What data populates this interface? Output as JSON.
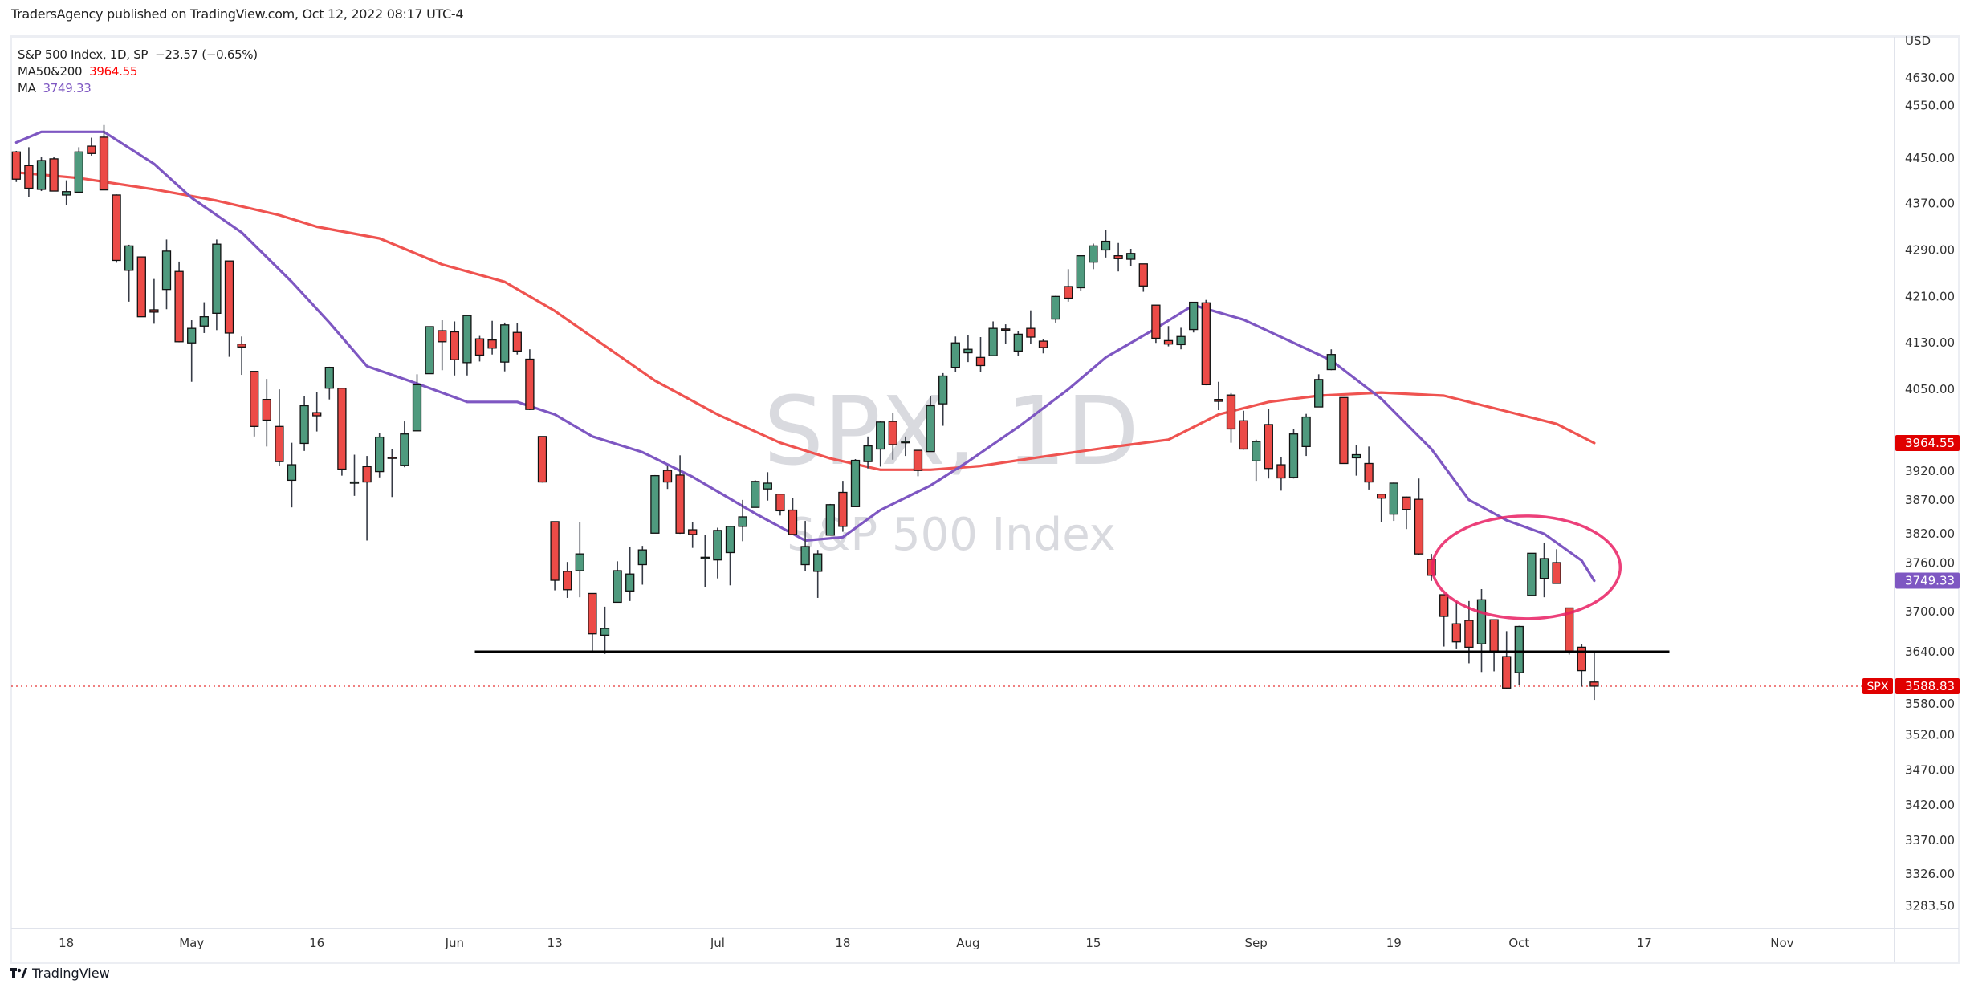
{
  "header": {
    "publisher_line": "TradersAgency published on TradingView.com, Oct 12, 2022 08:17 UTC-4"
  },
  "legend": {
    "symbol_line": "S&P 500 Index, 1D, SP",
    "change": "−23.57 (−0.65%)",
    "ma1_label": "MA50&200",
    "ma1_value": "3964.55",
    "ma2_label": "MA",
    "ma2_value": "3749.33"
  },
  "watermark": {
    "symbol": "SPX, 1D",
    "name": "S&P 500 Index"
  },
  "footer": {
    "brand": "TradingView"
  },
  "colors": {
    "up": "#4f9a7e",
    "down": "#ec4b47",
    "ma50_200": "#ef5350",
    "ma": "#7e57c2",
    "ellipse": "#e91e63",
    "support": "#000000",
    "last_price": "#e00000"
  },
  "chart_data": {
    "type": "candlestick",
    "symbol": "SPX",
    "currency": "USD",
    "y_ticks": [
      "4630.00",
      "4550.00",
      "4450.00",
      "4370.00",
      "4290.00",
      "4210.00",
      "4130.00",
      "4050.00",
      "3920.00",
      "3870.00",
      "3820.00",
      "3760.00",
      "3700.00",
      "3640.00",
      "3580.00",
      "3520.00",
      "3470.00",
      "3420.00",
      "3370.00",
      "3326.00",
      "3283.50"
    ],
    "x_ticks": [
      {
        "label": "18",
        "date": "2022-04-18"
      },
      {
        "label": "May",
        "date": "2022-05-02"
      },
      {
        "label": "16",
        "date": "2022-05-16"
      },
      {
        "label": "Jun",
        "date": "2022-06-01"
      },
      {
        "label": "13",
        "date": "2022-06-13"
      },
      {
        "label": "Jul",
        "date": "2022-07-01"
      },
      {
        "label": "18",
        "date": "2022-07-18"
      },
      {
        "label": "Aug",
        "date": "2022-08-01"
      },
      {
        "label": "15",
        "date": "2022-08-15"
      },
      {
        "label": "Sep",
        "date": "2022-09-01"
      },
      {
        "label": "19",
        "date": "2022-09-19"
      },
      {
        "label": "Oct",
        "date": "2022-10-03"
      },
      {
        "label": "17",
        "date": "2022-10-17"
      },
      {
        "label": "Nov",
        "date": "2022-11-01"
      }
    ],
    "price_badges": [
      {
        "label": "3964.55",
        "series": "MA50&200"
      },
      {
        "label": "3749.33",
        "series": "MA"
      },
      {
        "label": "3588.83",
        "series": "SPX",
        "tag": "SPX"
      }
    ],
    "support_line": {
      "value": 3640,
      "from": "2022-06-03",
      "to": "2022-10-19"
    },
    "highlight_ellipse": {
      "center_date": "2022-10-03",
      "center_value": 3770
    },
    "candles_columns": [
      "date",
      "open",
      "high",
      "low",
      "close"
    ],
    "candles": [
      [
        "2022-04-11",
        4462,
        4464,
        4408,
        4413
      ],
      [
        "2022-04-12",
        4437,
        4471,
        4381,
        4397
      ],
      [
        "2022-04-13",
        4395,
        4453,
        4392,
        4446
      ],
      [
        "2022-04-14",
        4449,
        4453,
        4392,
        4392
      ],
      [
        "2022-04-18",
        4385,
        4411,
        4367,
        4391
      ],
      [
        "2022-04-19",
        4390,
        4471,
        4390,
        4462
      ],
      [
        "2022-04-20",
        4473,
        4489,
        4455,
        4459
      ],
      [
        "2022-04-21",
        4490,
        4513,
        4394,
        4394
      ],
      [
        "2022-04-22",
        4385,
        4386,
        4268,
        4272
      ],
      [
        "2022-04-25",
        4255,
        4299,
        4201,
        4297
      ],
      [
        "2022-04-26",
        4278,
        4278,
        4175,
        4175
      ],
      [
        "2022-04-27",
        4187,
        4240,
        4163,
        4183
      ],
      [
        "2022-04-28",
        4222,
        4308,
        4188,
        4288
      ],
      [
        "2022-04-29",
        4253,
        4270,
        4131,
        4132
      ],
      [
        "2022-05-02",
        4130,
        4169,
        4063,
        4155
      ],
      [
        "2022-05-03",
        4159,
        4200,
        4147,
        4175
      ],
      [
        "2022-05-04",
        4181,
        4308,
        4152,
        4300
      ],
      [
        "2022-05-05",
        4271,
        4271,
        4106,
        4147
      ],
      [
        "2022-05-06",
        4128,
        4141,
        4075,
        4123
      ],
      [
        "2022-05-09",
        4081,
        4081,
        3975,
        3991
      ],
      [
        "2022-05-10",
        4034,
        4068,
        3959,
        4001
      ],
      [
        "2022-05-11",
        3991,
        4050,
        3928,
        3935
      ],
      [
        "2022-05-12",
        3904,
        3965,
        3859,
        3930
      ],
      [
        "2022-05-13",
        3964,
        4039,
        3952,
        4024
      ],
      [
        "2022-05-16",
        4013,
        4046,
        3983,
        4008
      ],
      [
        "2022-05-17",
        4052,
        4089,
        4034,
        4088
      ],
      [
        "2022-05-18",
        4052,
        4052,
        3912,
        3923
      ],
      [
        "2022-05-19",
        3900,
        3946,
        3877,
        3901
      ],
      [
        "2022-05-20",
        3927,
        3944,
        3810,
        3901
      ],
      [
        "2022-05-23",
        3919,
        3981,
        3909,
        3974
      ],
      [
        "2022-05-24",
        3942,
        3955,
        3875,
        3941
      ],
      [
        "2022-05-25",
        3929,
        3999,
        3926,
        3979
      ],
      [
        "2022-05-26",
        3984,
        4076,
        3984,
        4058
      ],
      [
        "2022-05-27",
        4077,
        4158,
        4077,
        4158
      ],
      [
        "2022-05-31",
        4151,
        4169,
        4083,
        4132
      ],
      [
        "2022-06-01",
        4149,
        4167,
        4074,
        4101
      ],
      [
        "2022-06-02",
        4096,
        4177,
        4074,
        4177
      ],
      [
        "2022-06-03",
        4137,
        4142,
        4098,
        4109
      ],
      [
        "2022-06-06",
        4135,
        4168,
        4110,
        4121
      ],
      [
        "2022-06-07",
        4097,
        4165,
        4081,
        4161
      ],
      [
        "2022-06-08",
        4148,
        4164,
        4110,
        4116
      ],
      [
        "2022-06-09",
        4102,
        4119,
        4017,
        4018
      ],
      [
        "2022-06-10",
        3975,
        3975,
        3900,
        3901
      ],
      [
        "2022-06-13",
        3838,
        3838,
        3734,
        3750
      ],
      [
        "2022-06-14",
        3764,
        3778,
        3722,
        3735
      ],
      [
        "2022-06-15",
        3765,
        3837,
        3723,
        3790
      ],
      [
        "2022-06-16",
        3729,
        3729,
        3639,
        3667
      ],
      [
        "2022-06-17",
        3665,
        3708,
        3637,
        3675
      ],
      [
        "2022-06-21",
        3715,
        3779,
        3715,
        3765
      ],
      [
        "2022-06-22",
        3733,
        3801,
        3717,
        3760
      ],
      [
        "2022-06-23",
        3774,
        3802,
        3743,
        3796
      ],
      [
        "2022-06-24",
        3821,
        3913,
        3821,
        3912
      ],
      [
        "2022-06-27",
        3921,
        3928,
        3889,
        3901
      ],
      [
        "2022-06-28",
        3913,
        3945,
        3820,
        3821
      ],
      [
        "2022-06-29",
        3826,
        3837,
        3799,
        3819
      ],
      [
        "2022-06-30",
        3785,
        3818,
        3739,
        3785
      ],
      [
        "2022-07-01",
        3781,
        3829,
        3753,
        3825
      ],
      [
        "2022-07-05",
        3792,
        3832,
        3742,
        3831
      ],
      [
        "2022-07-06",
        3831,
        3870,
        3809,
        3845
      ],
      [
        "2022-07-07",
        3859,
        3904,
        3859,
        3902
      ],
      [
        "2022-07-08",
        3889,
        3918,
        3869,
        3899
      ],
      [
        "2022-07-11",
        3880,
        3880,
        3847,
        3854
      ],
      [
        "2022-07-12",
        3855,
        3873,
        3818,
        3819
      ],
      [
        "2022-07-13",
        3774,
        3839,
        3765,
        3801
      ],
      [
        "2022-07-14",
        3764,
        3796,
        3722,
        3790
      ],
      [
        "2022-07-15",
        3818,
        3864,
        3818,
        3863
      ],
      [
        "2022-07-18",
        3883,
        3903,
        3823,
        3831
      ],
      [
        "2022-07-19",
        3860,
        3939,
        3860,
        3937
      ],
      [
        "2022-07-20",
        3935,
        3975,
        3924,
        3960
      ],
      [
        "2022-07-21",
        3955,
        3999,
        3927,
        3998
      ],
      [
        "2022-07-22",
        3999,
        4012,
        3938,
        3962
      ],
      [
        "2022-07-25",
        3965,
        3975,
        3944,
        3967
      ],
      [
        "2022-07-26",
        3953,
        3953,
        3911,
        3921
      ],
      [
        "2022-07-27",
        3951,
        4039,
        3951,
        4024
      ],
      [
        "2022-07-28",
        4027,
        4078,
        3992,
        4073
      ],
      [
        "2022-07-29",
        4088,
        4141,
        4080,
        4130
      ],
      [
        "2022-08-01",
        4113,
        4144,
        4097,
        4119
      ],
      [
        "2022-08-02",
        4105,
        4140,
        4080,
        4091
      ],
      [
        "2022-08-03",
        4108,
        4167,
        4107,
        4155
      ],
      [
        "2022-08-04",
        4154,
        4162,
        4128,
        4152
      ],
      [
        "2022-08-05",
        4116,
        4151,
        4107,
        4145
      ],
      [
        "2022-08-08",
        4155,
        4186,
        4128,
        4140
      ],
      [
        "2022-08-09",
        4133,
        4137,
        4112,
        4122
      ],
      [
        "2022-08-10",
        4171,
        4211,
        4165,
        4210
      ],
      [
        "2022-08-11",
        4227,
        4257,
        4201,
        4207
      ],
      [
        "2022-08-12",
        4225,
        4280,
        4219,
        4280
      ],
      [
        "2022-08-15",
        4269,
        4301,
        4257,
        4297
      ],
      [
        "2022-08-16",
        4290,
        4325,
        4277,
        4305
      ],
      [
        "2022-08-17",
        4280,
        4302,
        4253,
        4275
      ],
      [
        "2022-08-18",
        4274,
        4292,
        4262,
        4284
      ],
      [
        "2022-08-19",
        4266,
        4266,
        4218,
        4228
      ],
      [
        "2022-08-22",
        4195,
        4195,
        4130,
        4138
      ],
      [
        "2022-08-23",
        4134,
        4159,
        4124,
        4128
      ],
      [
        "2022-08-24",
        4127,
        4156,
        4119,
        4141
      ],
      [
        "2022-08-25",
        4153,
        4200,
        4148,
        4200
      ],
      [
        "2022-08-26",
        4199,
        4204,
        4057,
        4058
      ],
      [
        "2022-08-29",
        4034,
        4063,
        4017,
        4031
      ],
      [
        "2022-08-30",
        4041,
        4044,
        3965,
        3987
      ],
      [
        "2022-08-31",
        4000,
        4016,
        3954,
        3955
      ],
      [
        "2022-09-01",
        3936,
        3970,
        3903,
        3967
      ],
      [
        "2022-09-02",
        3994,
        4019,
        3907,
        3924
      ],
      [
        "2022-09-06",
        3930,
        3942,
        3886,
        3908
      ],
      [
        "2022-09-07",
        3909,
        3987,
        3907,
        3979
      ],
      [
        "2022-09-08",
        3959,
        4011,
        3944,
        4006
      ],
      [
        "2022-09-09",
        4022,
        4076,
        4022,
        4067
      ],
      [
        "2022-09-12",
        4084,
        4119,
        4083,
        4110
      ],
      [
        "2022-09-13",
        4037,
        4037,
        3933,
        3932
      ],
      [
        "2022-09-14",
        3941,
        3961,
        3912,
        3946
      ],
      [
        "2022-09-15",
        3932,
        3959,
        3888,
        3901
      ],
      [
        "2022-09-16",
        3880,
        3880,
        3837,
        3873
      ],
      [
        "2022-09-19",
        3849,
        3900,
        3839,
        3899
      ],
      [
        "2022-09-20",
        3875,
        3876,
        3827,
        3856
      ],
      [
        "2022-09-21",
        3871,
        3907,
        3789,
        3790
      ],
      [
        "2022-09-22",
        3782,
        3790,
        3749,
        3758
      ],
      [
        "2022-09-23",
        3727,
        3727,
        3648,
        3693
      ],
      [
        "2022-09-26",
        3682,
        3716,
        3644,
        3655
      ],
      [
        "2022-09-27",
        3687,
        3717,
        3623,
        3647
      ],
      [
        "2022-09-28",
        3652,
        3736,
        3610,
        3719
      ],
      [
        "2022-09-29",
        3688,
        3688,
        3611,
        3640
      ],
      [
        "2022-09-30",
        3633,
        3671,
        3584,
        3586
      ],
      [
        "2022-10-03",
        3609,
        3679,
        3591,
        3678
      ],
      [
        "2022-10-04",
        3726,
        3791,
        3726,
        3791
      ],
      [
        "2022-10-05",
        3753,
        3807,
        3723,
        3783
      ],
      [
        "2022-10-06",
        3777,
        3797,
        3745,
        3745
      ],
      [
        "2022-10-07",
        3706,
        3706,
        3636,
        3640
      ],
      [
        "2022-10-10",
        3647,
        3652,
        3588,
        3612
      ],
      [
        "2022-10-11",
        3595,
        3641,
        3569,
        3588.83
      ]
    ],
    "series": [
      {
        "name": "MA50&200",
        "points": [
          [
            "2022-04-11",
            4425
          ],
          [
            "2022-04-19",
            4415
          ],
          [
            "2022-04-27",
            4395
          ],
          [
            "2022-05-04",
            4375
          ],
          [
            "2022-05-11",
            4350
          ],
          [
            "2022-05-16",
            4330
          ],
          [
            "2022-05-23",
            4310
          ],
          [
            "2022-05-31",
            4265
          ],
          [
            "2022-06-07",
            4235
          ],
          [
            "2022-06-13",
            4185
          ],
          [
            "2022-06-17",
            4125
          ],
          [
            "2022-06-24",
            4065
          ],
          [
            "2022-07-01",
            4010
          ],
          [
            "2022-07-11",
            3965
          ],
          [
            "2022-07-15",
            3940
          ],
          [
            "2022-07-21",
            3922
          ],
          [
            "2022-07-27",
            3922
          ],
          [
            "2022-08-02",
            3928
          ],
          [
            "2022-08-09",
            3943
          ],
          [
            "2022-08-16",
            3957
          ],
          [
            "2022-08-23",
            3970
          ],
          [
            "2022-08-29",
            4010
          ],
          [
            "2022-09-02",
            4030
          ],
          [
            "2022-09-09",
            4040
          ],
          [
            "2022-09-16",
            4045
          ],
          [
            "2022-09-23",
            4040
          ],
          [
            "2022-09-30",
            4015
          ],
          [
            "2022-10-06",
            3995
          ],
          [
            "2022-10-11",
            3964.55
          ]
        ]
      },
      {
        "name": "MA",
        "points": [
          [
            "2022-04-11",
            4480
          ],
          [
            "2022-04-13",
            4500
          ],
          [
            "2022-04-21",
            4500
          ],
          [
            "2022-04-27",
            4440
          ],
          [
            "2022-05-02",
            4380
          ],
          [
            "2022-05-06",
            4320
          ],
          [
            "2022-05-12",
            4235
          ],
          [
            "2022-05-17",
            4165
          ],
          [
            "2022-05-20",
            4090
          ],
          [
            "2022-05-26",
            4060
          ],
          [
            "2022-06-02",
            4030
          ],
          [
            "2022-06-08",
            4030
          ],
          [
            "2022-06-13",
            4010
          ],
          [
            "2022-06-16",
            3975
          ],
          [
            "2022-06-23",
            3950
          ],
          [
            "2022-06-29",
            3910
          ],
          [
            "2022-07-07",
            3850
          ],
          [
            "2022-07-13",
            3810
          ],
          [
            "2022-07-18",
            3815
          ],
          [
            "2022-07-21",
            3855
          ],
          [
            "2022-07-27",
            3895
          ],
          [
            "2022-08-01",
            3935
          ],
          [
            "2022-08-05",
            3990
          ],
          [
            "2022-08-11",
            4050
          ],
          [
            "2022-08-16",
            4105
          ],
          [
            "2022-08-22",
            4155
          ],
          [
            "2022-08-25",
            4195
          ],
          [
            "2022-08-31",
            4170
          ],
          [
            "2022-09-07",
            4130
          ],
          [
            "2022-09-12",
            4100
          ],
          [
            "2022-09-16",
            4035
          ],
          [
            "2022-09-22",
            3955
          ],
          [
            "2022-09-27",
            3870
          ],
          [
            "2022-09-30",
            3840
          ],
          [
            "2022-10-05",
            3820
          ],
          [
            "2022-10-10",
            3780
          ],
          [
            "2022-10-11",
            3749.33
          ]
        ]
      }
    ]
  }
}
